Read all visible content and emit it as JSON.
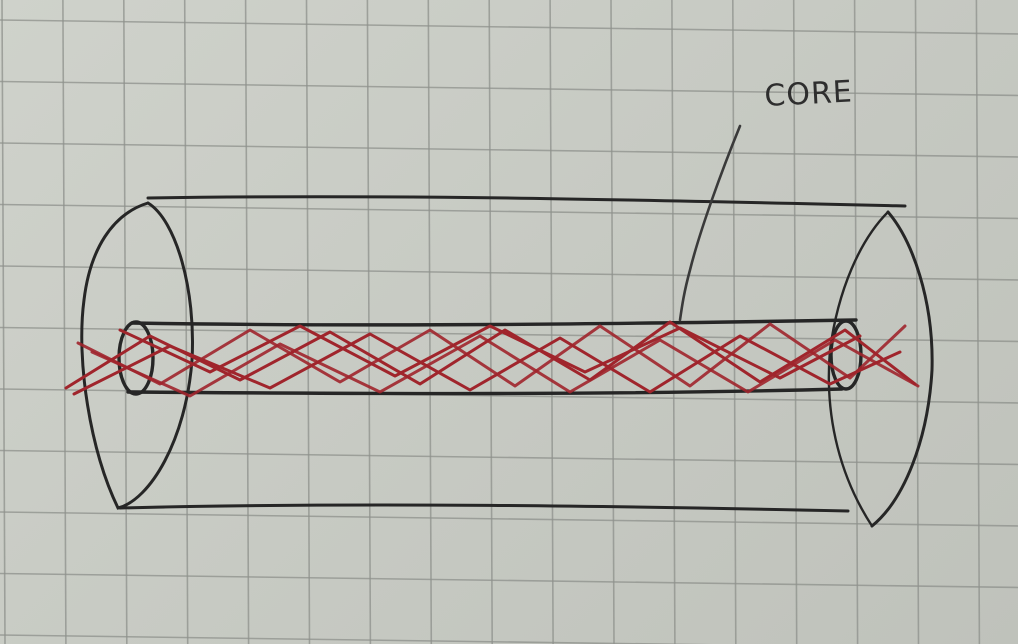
{
  "annotation": {
    "label": "CORE"
  },
  "colors": {
    "paper": "#cbcec7",
    "grid_line": "#8e918c",
    "pencil": "#262626",
    "red_strand": "#a0252c"
  }
}
